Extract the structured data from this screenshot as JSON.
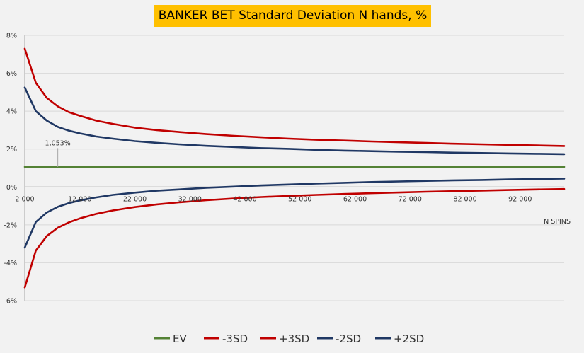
{
  "chart_data": {
    "type": "line",
    "title": "BANKER BET Standard Deviation  N hands, %",
    "xlabel": "N SPINS",
    "ylabel": "",
    "xlim": [
      2000,
      100000
    ],
    "ylim": [
      -6,
      8
    ],
    "x_ticks": [
      {
        "value": 2000,
        "label": "2 000"
      },
      {
        "value": 12000,
        "label": "12 000"
      },
      {
        "value": 22000,
        "label": "22 000"
      },
      {
        "value": 32000,
        "label": "32 000"
      },
      {
        "value": 42000,
        "label": "42 000"
      },
      {
        "value": 52000,
        "label": "52 000"
      },
      {
        "value": 62000,
        "label": "62 000"
      },
      {
        "value": 72000,
        "label": "72 000"
      },
      {
        "value": 82000,
        "label": "82 000"
      },
      {
        "value": 92000,
        "label": "92 000"
      }
    ],
    "y_ticks": [
      {
        "value": 8,
        "label": "8%"
      },
      {
        "value": 6,
        "label": "6%"
      },
      {
        "value": 4,
        "label": "4%"
      },
      {
        "value": 2,
        "label": "2%"
      },
      {
        "value": 0,
        "label": "0%"
      },
      {
        "value": -2,
        "label": "-2%"
      },
      {
        "value": -4,
        "label": "-4%"
      },
      {
        "value": -6,
        "label": "-6%"
      }
    ],
    "grid": true,
    "legend_position": "bottom",
    "x": [
      2000,
      4000,
      6000,
      8000,
      10000,
      12000,
      15000,
      18000,
      22000,
      26000,
      30000,
      35000,
      40000,
      45000,
      50000,
      55000,
      60000,
      65000,
      70000,
      75000,
      80000,
      85000,
      90000,
      95000,
      100000
    ],
    "series": [
      {
        "name": "EV",
        "color": "#548235",
        "values": [
          1.06,
          1.06,
          1.06,
          1.06,
          1.06,
          1.06,
          1.06,
          1.06,
          1.06,
          1.06,
          1.06,
          1.06,
          1.06,
          1.06,
          1.06,
          1.06,
          1.06,
          1.06,
          1.06,
          1.06,
          1.06,
          1.06,
          1.06,
          1.06,
          1.06
        ]
      },
      {
        "name": "-3SD",
        "color": "#c00000",
        "values": [
          -5.3,
          -3.36,
          -2.59,
          -2.15,
          -1.87,
          -1.66,
          -1.42,
          -1.24,
          -1.06,
          -0.92,
          -0.81,
          -0.7,
          -0.61,
          -0.53,
          -0.47,
          -0.42,
          -0.37,
          -0.33,
          -0.29,
          -0.25,
          -0.22,
          -0.19,
          -0.16,
          -0.13,
          -0.11
        ]
      },
      {
        "name": "+3SD",
        "color": "#c00000",
        "values": [
          7.3,
          5.5,
          4.7,
          4.25,
          3.95,
          3.76,
          3.5,
          3.33,
          3.13,
          3.0,
          2.9,
          2.79,
          2.7,
          2.62,
          2.55,
          2.49,
          2.45,
          2.4,
          2.36,
          2.32,
          2.28,
          2.25,
          2.22,
          2.19,
          2.16
        ]
      },
      {
        "name": "-2SD",
        "color": "#203864",
        "values": [
          -3.2,
          -1.85,
          -1.35,
          -1.05,
          -0.85,
          -0.71,
          -0.55,
          -0.42,
          -0.3,
          -0.2,
          -0.13,
          -0.04,
          0.02,
          0.08,
          0.13,
          0.18,
          0.22,
          0.26,
          0.29,
          0.32,
          0.35,
          0.37,
          0.4,
          0.42,
          0.44
        ]
      },
      {
        "name": "+2SD",
        "color": "#203864",
        "values": [
          5.25,
          4.0,
          3.5,
          3.17,
          2.97,
          2.83,
          2.66,
          2.55,
          2.42,
          2.33,
          2.25,
          2.17,
          2.11,
          2.05,
          2.01,
          1.96,
          1.92,
          1.89,
          1.86,
          1.84,
          1.81,
          1.79,
          1.77,
          1.75,
          1.73
        ]
      }
    ],
    "annotation": {
      "text": "1,053%",
      "x": 8000
    }
  }
}
